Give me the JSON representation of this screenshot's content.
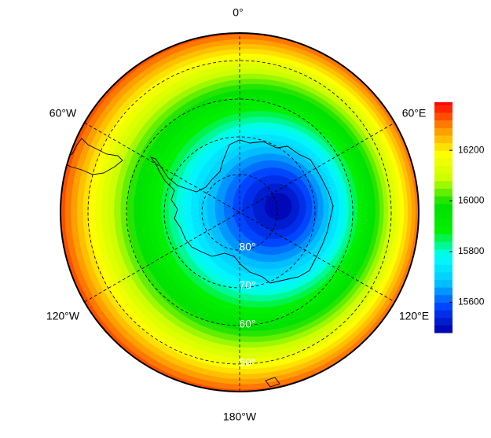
{
  "map": {
    "lon_labels": [
      "0°",
      "60°E",
      "120°E",
      "180°W",
      "120°W",
      "60°W"
    ],
    "lat_labels": [
      "80°",
      "70°",
      "60°",
      "50°"
    ],
    "levels": [
      15480,
      15510,
      15540,
      15570,
      15600,
      15630,
      15660,
      15690,
      15720,
      15750,
      15780,
      15810,
      15840,
      15870,
      15900,
      15930,
      15960,
      15990,
      16020,
      16050,
      16080,
      16110,
      16140,
      16170,
      16200,
      16230,
      16260,
      16290,
      16320,
      16350,
      16380
    ],
    "colormap": [
      "#0000a8",
      "#0040ff",
      "#00c8ff",
      "#00ffff",
      "#00f000",
      "#00e000",
      "#c8ff00",
      "#ffff00",
      "#ff9000",
      "#ff0000"
    ],
    "colorbar": {
      "lim": [
        15480,
        16390
      ],
      "ticks": [
        15600,
        15800,
        16000,
        16200
      ]
    }
  }
}
